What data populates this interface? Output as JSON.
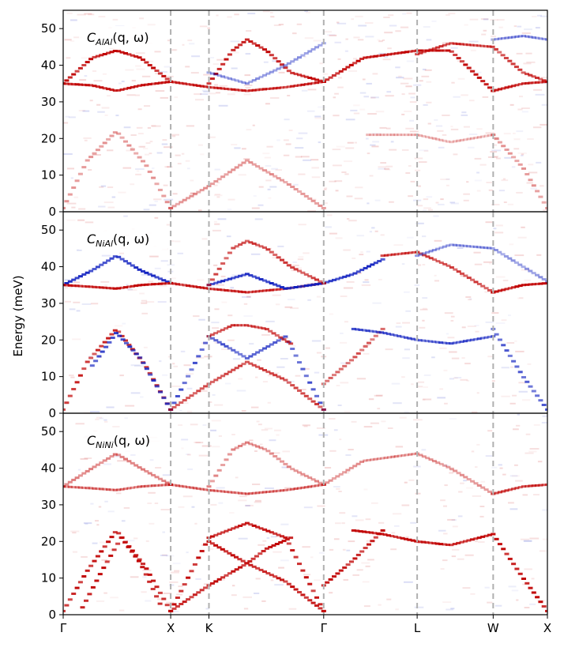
{
  "figure": {
    "ylabel": "Energy (meV)",
    "colors": {
      "positive": "#c00000",
      "negative": "#1020c0",
      "guide": "#b0b0b0"
    }
  },
  "chart_data": [
    {
      "type": "heatmap",
      "id": "alal",
      "annotation": {
        "symbol": "C",
        "subscript": "AlAl",
        "args": "(q, ω)"
      },
      "ylim": [
        0,
        55
      ],
      "yticks": [
        0,
        10,
        20,
        30,
        40,
        50
      ],
      "xlim": [
        0,
        1
      ],
      "xticks": [
        {
          "label": "Γ",
          "x": 0
        },
        {
          "label": "X",
          "x": 0.222
        },
        {
          "label": "K",
          "x": 0.301
        },
        {
          "label": "Γ",
          "x": 0.538
        },
        {
          "label": "L",
          "x": 0.731
        },
        {
          "label": "W",
          "x": 0.888
        },
        {
          "label": "X",
          "x": 1
        }
      ],
      "branches": [
        {
          "sign": 1,
          "strength": 0.45,
          "x": [
            0,
            0.05,
            0.11,
            0.17,
            0.222
          ],
          "y": [
            1,
            14,
            22,
            13,
            1
          ]
        },
        {
          "sign": 1,
          "strength": 0.45,
          "x": [
            0.222,
            0.301,
            0.38,
            0.46,
            0.538
          ],
          "y": [
            1,
            7,
            14,
            8,
            1
          ]
        },
        {
          "sign": 1,
          "strength": 0.3,
          "x": [
            0.63,
            0.731,
            0.8,
            0.888
          ],
          "y": [
            21,
            21,
            19,
            21
          ]
        },
        {
          "sign": 1,
          "strength": 0.45,
          "x": [
            0.888,
            0.95,
            1
          ],
          "y": [
            21,
            12,
            1
          ]
        },
        {
          "sign": 1,
          "strength": 1,
          "x": [
            0,
            0.06,
            0.11,
            0.16,
            0.222
          ],
          "y": [
            35,
            34.5,
            33,
            34.5,
            35.5
          ]
        },
        {
          "sign": 1,
          "strength": 0.9,
          "x": [
            0.222,
            0.301,
            0.38,
            0.46,
            0.538
          ],
          "y": [
            35.5,
            34,
            33,
            34,
            35.5
          ]
        },
        {
          "sign": 1,
          "strength": 0.9,
          "x": [
            0.888,
            0.95,
            1
          ],
          "y": [
            33,
            35,
            35.5
          ]
        },
        {
          "sign": 1,
          "strength": 1,
          "x": [
            0,
            0.06,
            0.11,
            0.16,
            0.222
          ],
          "y": [
            35,
            42,
            44,
            42,
            35.5
          ]
        },
        {
          "sign": 1,
          "strength": 1,
          "x": [
            0.301,
            0.35,
            0.38,
            0.42,
            0.47,
            0.538
          ],
          "y": [
            35,
            44,
            47,
            44,
            38,
            35.5
          ]
        },
        {
          "sign": 1,
          "strength": 1,
          "x": [
            0.538,
            0.62,
            0.731,
            0.8,
            0.888
          ],
          "y": [
            35.5,
            42,
            44,
            44,
            33
          ]
        },
        {
          "sign": 1,
          "strength": 0.8,
          "x": [
            0.731,
            0.8,
            0.888,
            0.95,
            1
          ],
          "y": [
            43,
            46,
            45,
            38,
            35.5
          ]
        },
        {
          "sign": -1,
          "strength": 0.5,
          "x": [
            0.301,
            0.38,
            0.46,
            0.538
          ],
          "y": [
            38,
            35,
            40,
            46
          ]
        },
        {
          "sign": -1,
          "strength": 0.5,
          "x": [
            0.888,
            0.95,
            1
          ],
          "y": [
            47,
            48,
            47
          ]
        }
      ]
    },
    {
      "type": "heatmap",
      "id": "nial",
      "annotation": {
        "symbol": "C",
        "subscript": "NiAl",
        "args": "(q, ω)"
      },
      "ylim": [
        0,
        55
      ],
      "yticks": [
        0,
        10,
        20,
        30,
        40,
        50
      ],
      "xlim": [
        0,
        1
      ],
      "xticks": [
        {
          "label": "Γ",
          "x": 0
        },
        {
          "label": "X",
          "x": 0.222
        },
        {
          "label": "K",
          "x": 0.301
        },
        {
          "label": "Γ",
          "x": 0.538
        },
        {
          "label": "L",
          "x": 0.731
        },
        {
          "label": "W",
          "x": 0.888
        },
        {
          "label": "X",
          "x": 1
        }
      ],
      "branches": [
        {
          "sign": 1,
          "strength": 0.9,
          "x": [
            0,
            0.05,
            0.11,
            0.17,
            0.222
          ],
          "y": [
            1,
            14,
            23,
            13,
            1
          ]
        },
        {
          "sign": -1,
          "strength": 0.9,
          "x": [
            0.06,
            0.11,
            0.16,
            0.222
          ],
          "y": [
            13,
            22,
            15,
            1
          ]
        },
        {
          "sign": -1,
          "strength": 0.8,
          "x": [
            0.222,
            0.301,
            0.38,
            0.46,
            0.538
          ],
          "y": [
            1,
            21,
            15,
            21,
            1
          ]
        },
        {
          "sign": 1,
          "strength": 0.8,
          "x": [
            0.222,
            0.301,
            0.38,
            0.46,
            0.538
          ],
          "y": [
            1,
            8,
            14,
            9,
            1
          ]
        },
        {
          "sign": 1,
          "strength": 0.8,
          "x": [
            0.301,
            0.35,
            0.38,
            0.42,
            0.47
          ],
          "y": [
            21,
            24,
            24,
            23,
            19
          ]
        },
        {
          "sign": 1,
          "strength": 0.7,
          "x": [
            0.538,
            0.6,
            0.66
          ],
          "y": [
            8,
            15,
            23
          ]
        },
        {
          "sign": -1,
          "strength": 0.8,
          "x": [
            0.6,
            0.66,
            0.731,
            0.8,
            0.888
          ],
          "y": [
            23,
            22,
            20,
            19,
            21
          ]
        },
        {
          "sign": -1,
          "strength": 0.8,
          "x": [
            0.888,
            0.95,
            1
          ],
          "y": [
            23,
            10,
            1
          ]
        },
        {
          "sign": -1,
          "strength": 1,
          "x": [
            0,
            0.06,
            0.11,
            0.16,
            0.222
          ],
          "y": [
            35,
            39,
            43,
            39,
            35.5
          ]
        },
        {
          "sign": 1,
          "strength": 1,
          "x": [
            0,
            0.06,
            0.11,
            0.16,
            0.222
          ],
          "y": [
            35,
            34.5,
            34,
            35,
            35.5
          ]
        },
        {
          "sign": 1,
          "strength": 0.9,
          "x": [
            0.222,
            0.301,
            0.38,
            0.46,
            0.538
          ],
          "y": [
            35.5,
            34,
            33,
            34,
            35.5
          ]
        },
        {
          "sign": -1,
          "strength": 1,
          "x": [
            0.301,
            0.38,
            0.46,
            0.538,
            0.6,
            0.66
          ],
          "y": [
            35,
            38,
            34,
            35.5,
            38,
            42
          ]
        },
        {
          "sign": 1,
          "strength": 0.8,
          "x": [
            0.301,
            0.35,
            0.38,
            0.42,
            0.47,
            0.538
          ],
          "y": [
            35,
            45,
            47,
            45,
            40,
            35.5
          ]
        },
        {
          "sign": 1,
          "strength": 0.8,
          "x": [
            0.66,
            0.731,
            0.8,
            0.888
          ],
          "y": [
            43,
            44,
            40,
            33
          ]
        },
        {
          "sign": 1,
          "strength": 1,
          "x": [
            0.888,
            0.95,
            1
          ],
          "y": [
            33,
            35,
            35.5
          ]
        },
        {
          "sign": -1,
          "strength": 0.5,
          "x": [
            0.731,
            0.8,
            0.888,
            0.95,
            1
          ],
          "y": [
            43,
            46,
            45,
            40,
            36
          ]
        }
      ]
    },
    {
      "type": "heatmap",
      "id": "nini",
      "annotation": {
        "symbol": "C",
        "subscript": "NiNi",
        "args": "(q, ω)"
      },
      "ylim": [
        0,
        55
      ],
      "yticks": [
        0,
        10,
        20,
        30,
        40,
        50
      ],
      "xlim": [
        0,
        1
      ],
      "xticks": [
        {
          "label": "Γ",
          "x": 0
        },
        {
          "label": "X",
          "x": 0.222
        },
        {
          "label": "K",
          "x": 0.301
        },
        {
          "label": "Γ",
          "x": 0.538
        },
        {
          "label": "L",
          "x": 0.731
        },
        {
          "label": "W",
          "x": 0.888
        },
        {
          "label": "X",
          "x": 1
        }
      ],
      "branches": [
        {
          "sign": 1,
          "strength": 1,
          "x": [
            0,
            0.05,
            0.11,
            0.17,
            0.222
          ],
          "y": [
            1,
            12,
            23,
            13,
            1
          ]
        },
        {
          "sign": 1,
          "strength": 1,
          "x": [
            0.04,
            0.08,
            0.12,
            0.16,
            0.2
          ],
          "y": [
            2,
            12,
            21,
            14,
            3
          ]
        },
        {
          "sign": 1,
          "strength": 1,
          "x": [
            0.222,
            0.301,
            0.38,
            0.46,
            0.538
          ],
          "y": [
            1,
            21,
            25,
            21,
            1
          ]
        },
        {
          "sign": 1,
          "strength": 1,
          "x": [
            0.222,
            0.301,
            0.38,
            0.46,
            0.538
          ],
          "y": [
            1,
            8,
            14,
            9,
            1
          ]
        },
        {
          "sign": 1,
          "strength": 1,
          "x": [
            0.301,
            0.34,
            0.38,
            0.42,
            0.47
          ],
          "y": [
            20,
            17,
            14,
            18,
            21
          ]
        },
        {
          "sign": 1,
          "strength": 1,
          "x": [
            0.538,
            0.6,
            0.66
          ],
          "y": [
            8,
            15,
            23
          ]
        },
        {
          "sign": 1,
          "strength": 1,
          "x": [
            0.6,
            0.66,
            0.731,
            0.8,
            0.888
          ],
          "y": [
            23,
            22,
            20,
            19,
            22
          ]
        },
        {
          "sign": 1,
          "strength": 1,
          "x": [
            0.888,
            0.95,
            1
          ],
          "y": [
            22,
            10,
            1
          ]
        },
        {
          "sign": 1,
          "strength": 0.55,
          "x": [
            0,
            0.06,
            0.11,
            0.16,
            0.222
          ],
          "y": [
            35,
            40,
            44,
            40,
            35.5
          ]
        },
        {
          "sign": 1,
          "strength": 0.6,
          "x": [
            0,
            0.06,
            0.11,
            0.16,
            0.222
          ],
          "y": [
            35,
            34.5,
            34,
            35,
            35.5
          ]
        },
        {
          "sign": 1,
          "strength": 0.6,
          "x": [
            0.222,
            0.301,
            0.38,
            0.46,
            0.538
          ],
          "y": [
            35.5,
            34,
            33,
            34,
            35.5
          ]
        },
        {
          "sign": 1,
          "strength": 0.5,
          "x": [
            0.301,
            0.35,
            0.38,
            0.42,
            0.47,
            0.538
          ],
          "y": [
            35,
            45,
            47,
            45,
            40,
            35.5
          ]
        },
        {
          "sign": 1,
          "strength": 0.45,
          "x": [
            0.538,
            0.62,
            0.731,
            0.8,
            0.888
          ],
          "y": [
            35.5,
            42,
            44,
            40,
            33
          ]
        },
        {
          "sign": 1,
          "strength": 0.8,
          "x": [
            0.888,
            0.95,
            1
          ],
          "y": [
            33,
            35,
            35.5
          ]
        }
      ]
    }
  ]
}
